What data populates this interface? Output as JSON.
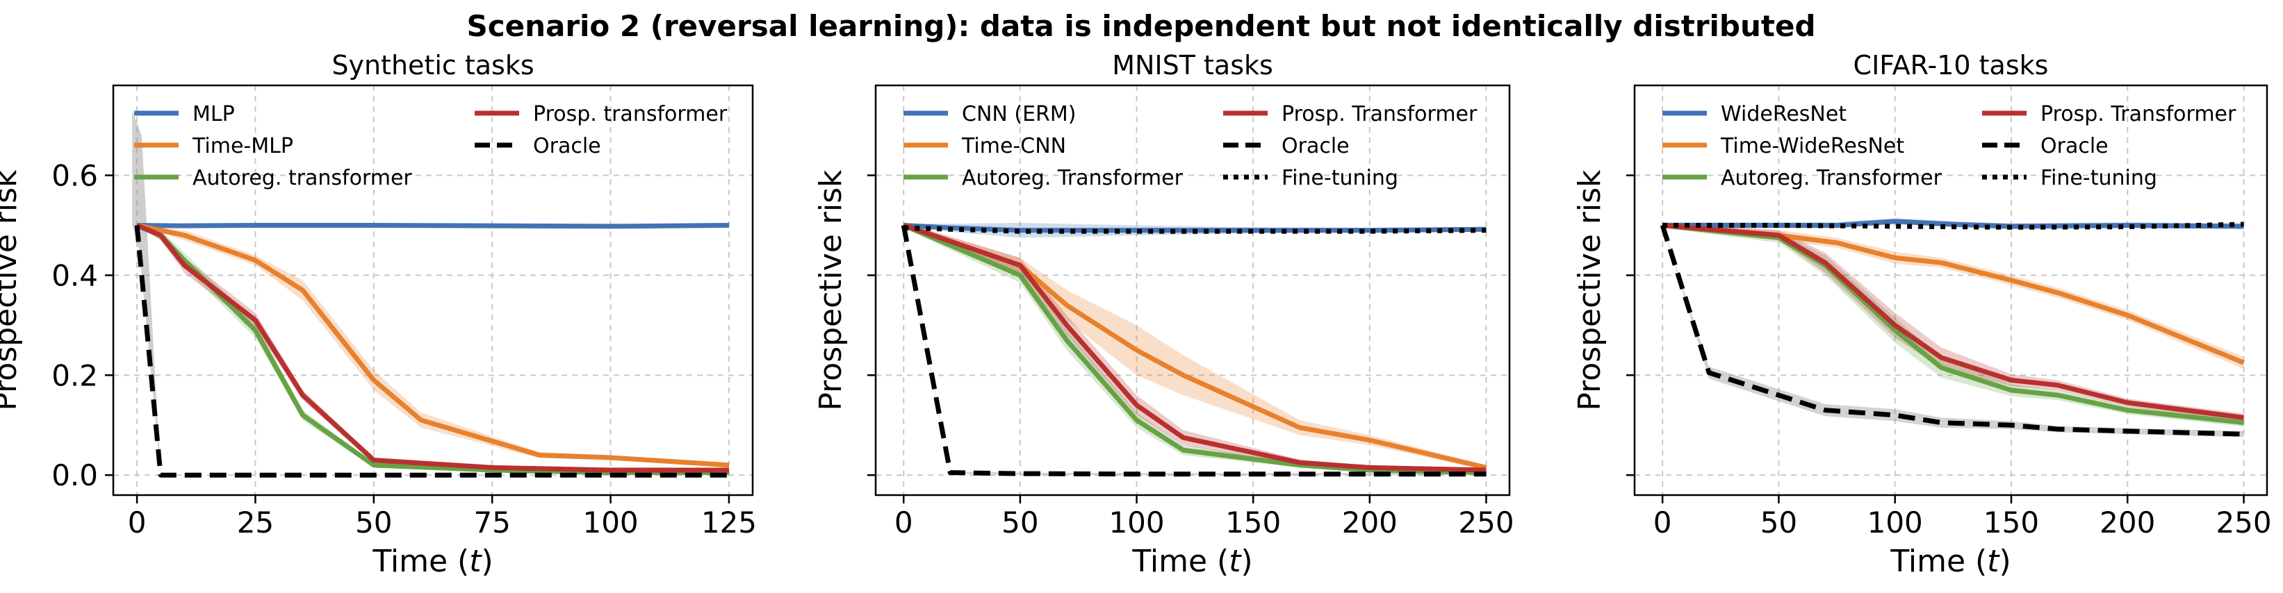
{
  "figure": {
    "suptitle": "Scenario 2 (reversal learning): data is independent but not identically distributed"
  },
  "colors": {
    "blue": "#4472b4",
    "orange": "#e8812d",
    "green": "#66a345",
    "red": "#b8312f",
    "black": "#000000",
    "gray_band": "#9e9e9e"
  },
  "chart_data": [
    {
      "type": "line",
      "title": "Synthetic tasks",
      "xlabel": "Time",
      "xlabel_var": "t",
      "ylabel": "Prospective risk",
      "xlim": [
        -5,
        130
      ],
      "ylim": [
        -0.04,
        0.78
      ],
      "xticks": [
        0,
        25,
        50,
        75,
        100,
        125
      ],
      "xtick_labels": [
        "0",
        "25",
        "50",
        "75",
        "100",
        "125"
      ],
      "yticks": [
        0.0,
        0.2,
        0.4,
        0.6
      ],
      "ytick_labels": [
        "0.0",
        "0.2",
        "0.4",
        "0.6"
      ],
      "show_yticklabels": true,
      "grid": true,
      "legend": {
        "placement": "top",
        "columns": 2
      },
      "series": [
        {
          "name": "MLP",
          "color": "blue",
          "style": "solid",
          "x": [
            0,
            10,
            25,
            50,
            75,
            100,
            125
          ],
          "y": [
            0.5,
            0.499,
            0.5,
            0.5,
            0.499,
            0.498,
            0.5
          ],
          "band": 0.003
        },
        {
          "name": "Time-MLP",
          "color": "orange",
          "style": "solid",
          "x": [
            0,
            5,
            10,
            25,
            35,
            50,
            60,
            85,
            100,
            125
          ],
          "y": [
            0.5,
            0.49,
            0.48,
            0.43,
            0.37,
            0.19,
            0.11,
            0.04,
            0.035,
            0.02
          ],
          "band": [
            0.0,
            0.005,
            0.01,
            0.01,
            0.02,
            0.02,
            0.015,
            0.006,
            0.005,
            0.004
          ]
        },
        {
          "name": "Autoreg. transformer",
          "color": "green",
          "style": "solid",
          "x": [
            0,
            5,
            10,
            25,
            35,
            50,
            75,
            100,
            125
          ],
          "y": [
            0.5,
            0.48,
            0.43,
            0.29,
            0.12,
            0.02,
            0.01,
            0.005,
            0.005
          ],
          "band": [
            0.0,
            0.01,
            0.015,
            0.015,
            0.01,
            0.005,
            0.004,
            0.003,
            0.003
          ]
        },
        {
          "name": "Prosp. transformer",
          "color": "red",
          "style": "solid",
          "x": [
            0,
            5,
            10,
            25,
            35,
            50,
            75,
            100,
            125
          ],
          "y": [
            0.5,
            0.48,
            0.42,
            0.31,
            0.16,
            0.03,
            0.015,
            0.01,
            0.01
          ],
          "band": [
            0.0,
            0.01,
            0.015,
            0.015,
            0.01,
            0.005,
            0.004,
            0.003,
            0.003
          ]
        },
        {
          "name": "Oracle",
          "color": "black",
          "style": "dashed",
          "x": [
            0,
            5,
            10,
            25,
            50,
            75,
            100,
            125
          ],
          "y": [
            0.5,
            0.0,
            0.0,
            0.0,
            0.0,
            0.0,
            0.0,
            0.0
          ],
          "band": [
            0.0,
            0.0,
            0.0,
            0.0,
            0.0,
            0.0,
            0.0,
            0.0
          ],
          "spike": {
            "x": 0,
            "to": 0.73,
            "x_end": 5,
            "to_end": 0.0
          }
        }
      ]
    },
    {
      "type": "line",
      "title": "MNIST tasks",
      "xlabel": "Time",
      "xlabel_var": "t",
      "ylabel": "Prospective risk",
      "xlim": [
        -12,
        260
      ],
      "ylim": [
        -0.04,
        0.78
      ],
      "xticks": [
        0,
        50,
        100,
        150,
        200,
        250
      ],
      "xtick_labels": [
        "0",
        "50",
        "100",
        "150",
        "200",
        "250"
      ],
      "yticks": [
        0.0,
        0.2,
        0.4,
        0.6
      ],
      "ytick_labels": [
        "0.0",
        "0.2",
        "0.4",
        "0.6"
      ],
      "show_yticklabels": false,
      "grid": true,
      "legend": {
        "placement": "top",
        "columns": 2
      },
      "series": [
        {
          "name": "CNN (ERM)",
          "color": "blue",
          "style": "solid",
          "x": [
            0,
            20,
            50,
            100,
            150,
            200,
            250
          ],
          "y": [
            0.5,
            0.495,
            0.49,
            0.49,
            0.49,
            0.49,
            0.492
          ],
          "band": [
            0.003,
            0.008,
            0.015,
            0.01,
            0.006,
            0.005,
            0.005
          ]
        },
        {
          "name": "Time-CNN",
          "color": "orange",
          "style": "solid",
          "x": [
            0,
            50,
            70,
            100,
            120,
            170,
            200,
            250
          ],
          "y": [
            0.5,
            0.42,
            0.34,
            0.25,
            0.2,
            0.095,
            0.07,
            0.015
          ],
          "band": [
            0.005,
            0.015,
            0.03,
            0.05,
            0.04,
            0.015,
            0.01,
            0.005
          ]
        },
        {
          "name": "Autoreg. Transformer",
          "color": "green",
          "style": "solid",
          "x": [
            0,
            50,
            70,
            100,
            120,
            170,
            200,
            250
          ],
          "y": [
            0.5,
            0.4,
            0.27,
            0.11,
            0.05,
            0.02,
            0.01,
            0.005
          ],
          "band": [
            0.005,
            0.015,
            0.02,
            0.015,
            0.01,
            0.005,
            0.004,
            0.003
          ]
        },
        {
          "name": "Prosp. Transformer",
          "color": "red",
          "style": "solid",
          "x": [
            0,
            50,
            70,
            100,
            120,
            170,
            200,
            250
          ],
          "y": [
            0.5,
            0.42,
            0.3,
            0.14,
            0.075,
            0.025,
            0.015,
            0.01
          ],
          "band": [
            0.005,
            0.015,
            0.02,
            0.02,
            0.015,
            0.006,
            0.004,
            0.003
          ]
        },
        {
          "name": "Oracle",
          "color": "black",
          "style": "dashed",
          "x": [
            0,
            20,
            50,
            100,
            150,
            200,
            250
          ],
          "y": [
            0.5,
            0.005,
            0.003,
            0.002,
            0.002,
            0.002,
            0.002
          ],
          "band": 0.002
        },
        {
          "name": "Fine-tuning",
          "color": "black",
          "style": "dotted",
          "x": [
            0,
            50,
            100,
            150,
            200,
            250
          ],
          "y": [
            0.495,
            0.488,
            0.488,
            0.488,
            0.488,
            0.49
          ],
          "band": 0.0
        }
      ]
    },
    {
      "type": "line",
      "title": "CIFAR-10 tasks",
      "xlabel": "Time",
      "xlabel_var": "t",
      "ylabel": "Prospective risk",
      "xlim": [
        -12,
        260
      ],
      "ylim": [
        -0.04,
        0.78
      ],
      "xticks": [
        0,
        50,
        100,
        150,
        200,
        250
      ],
      "xtick_labels": [
        "0",
        "50",
        "100",
        "150",
        "200",
        "250"
      ],
      "yticks": [
        0.0,
        0.2,
        0.4,
        0.6
      ],
      "ytick_labels": [
        "0.0",
        "0.2",
        "0.4",
        "0.6"
      ],
      "show_yticklabels": false,
      "grid": true,
      "legend": {
        "placement": "top",
        "columns": 2
      },
      "series": [
        {
          "name": "WideResNet",
          "color": "blue",
          "style": "solid",
          "x": [
            0,
            50,
            75,
            100,
            125,
            150,
            200,
            250
          ],
          "y": [
            0.5,
            0.5,
            0.5,
            0.508,
            0.502,
            0.498,
            0.5,
            0.498
          ],
          "band": 0.006
        },
        {
          "name": "Time-WideResNet",
          "color": "orange",
          "style": "solid",
          "x": [
            0,
            50,
            75,
            100,
            120,
            150,
            170,
            200,
            250
          ],
          "y": [
            0.5,
            0.48,
            0.465,
            0.435,
            0.425,
            0.39,
            0.365,
            0.32,
            0.225
          ],
          "band": [
            0.005,
            0.01,
            0.01,
            0.012,
            0.01,
            0.01,
            0.01,
            0.01,
            0.012
          ]
        },
        {
          "name": "Autoreg. Transformer",
          "color": "green",
          "style": "solid",
          "x": [
            0,
            50,
            70,
            100,
            120,
            150,
            170,
            200,
            250
          ],
          "y": [
            0.5,
            0.475,
            0.42,
            0.29,
            0.215,
            0.17,
            0.16,
            0.13,
            0.105
          ],
          "band": [
            0.005,
            0.01,
            0.02,
            0.025,
            0.02,
            0.012,
            0.01,
            0.008,
            0.008
          ]
        },
        {
          "name": "Prosp. Transformer",
          "color": "red",
          "style": "solid",
          "x": [
            0,
            50,
            70,
            100,
            120,
            150,
            170,
            200,
            250
          ],
          "y": [
            0.5,
            0.48,
            0.425,
            0.3,
            0.235,
            0.19,
            0.18,
            0.145,
            0.115
          ],
          "band": [
            0.005,
            0.01,
            0.02,
            0.025,
            0.02,
            0.012,
            0.01,
            0.008,
            0.008
          ]
        },
        {
          "name": "Oracle",
          "color": "black",
          "style": "dashed",
          "x": [
            0,
            20,
            50,
            70,
            100,
            120,
            150,
            170,
            200,
            250
          ],
          "y": [
            0.5,
            0.205,
            0.16,
            0.13,
            0.12,
            0.105,
            0.1,
            0.092,
            0.088,
            0.082
          ],
          "band": [
            0.0,
            0.012,
            0.012,
            0.012,
            0.012,
            0.01,
            0.008,
            0.006,
            0.006,
            0.006
          ]
        },
        {
          "name": "Fine-tuning",
          "color": "black",
          "style": "dotted",
          "x": [
            0,
            50,
            100,
            150,
            200,
            250
          ],
          "y": [
            0.5,
            0.5,
            0.498,
            0.496,
            0.497,
            0.502
          ],
          "band": 0.0
        }
      ]
    }
  ]
}
